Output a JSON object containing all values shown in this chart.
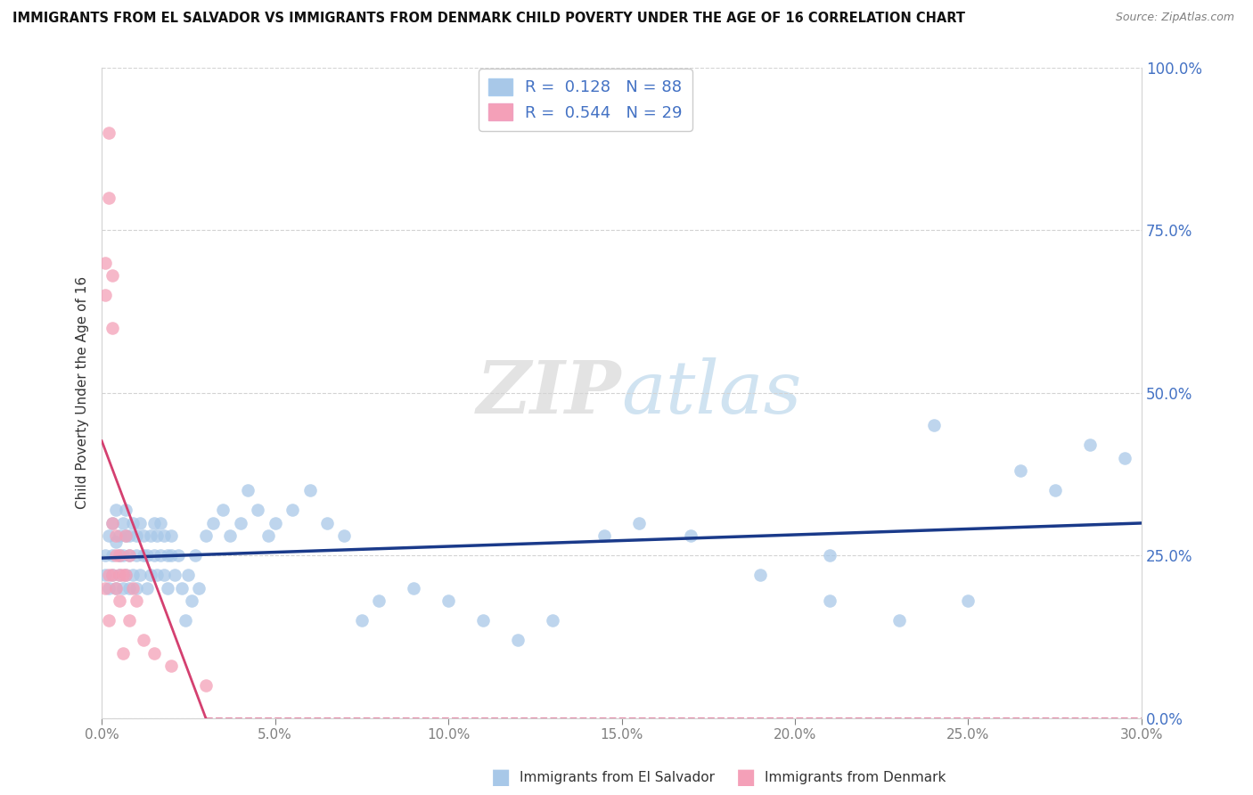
{
  "title": "IMMIGRANTS FROM EL SALVADOR VS IMMIGRANTS FROM DENMARK CHILD POVERTY UNDER THE AGE OF 16 CORRELATION CHART",
  "source": "Source: ZipAtlas.com",
  "ylabel": "Child Poverty Under the Age of 16",
  "watermark": "ZIPatlas",
  "legend_entry1_r": "0.128",
  "legend_entry1_n": "88",
  "legend_entry2_r": "0.544",
  "legend_entry2_n": "29",
  "legend_label1": "Immigrants from El Salvador",
  "legend_label2": "Immigrants from Denmark",
  "blue_color": "#a8c8e8",
  "pink_color": "#f4a0b8",
  "blue_line_color": "#1a3a8a",
  "pink_line_color": "#d44070",
  "xlim": [
    0.0,
    0.3
  ],
  "ylim": [
    0.0,
    1.0
  ],
  "blue_scatter_x": [
    0.001,
    0.001,
    0.002,
    0.002,
    0.003,
    0.003,
    0.003,
    0.004,
    0.004,
    0.004,
    0.005,
    0.005,
    0.005,
    0.006,
    0.006,
    0.006,
    0.007,
    0.007,
    0.007,
    0.008,
    0.008,
    0.008,
    0.009,
    0.009,
    0.01,
    0.01,
    0.01,
    0.011,
    0.011,
    0.012,
    0.012,
    0.013,
    0.013,
    0.014,
    0.014,
    0.015,
    0.015,
    0.016,
    0.016,
    0.017,
    0.017,
    0.018,
    0.018,
    0.019,
    0.019,
    0.02,
    0.02,
    0.021,
    0.022,
    0.023,
    0.024,
    0.025,
    0.026,
    0.027,
    0.028,
    0.03,
    0.032,
    0.035,
    0.037,
    0.04,
    0.042,
    0.045,
    0.048,
    0.05,
    0.055,
    0.06,
    0.065,
    0.07,
    0.075,
    0.08,
    0.09,
    0.1,
    0.11,
    0.12,
    0.13,
    0.145,
    0.155,
    0.17,
    0.19,
    0.21,
    0.23,
    0.25,
    0.265,
    0.275,
    0.285,
    0.295,
    0.21,
    0.24
  ],
  "blue_scatter_y": [
    0.22,
    0.25,
    0.2,
    0.28,
    0.22,
    0.25,
    0.3,
    0.2,
    0.27,
    0.32,
    0.22,
    0.25,
    0.28,
    0.2,
    0.25,
    0.3,
    0.22,
    0.28,
    0.32,
    0.2,
    0.25,
    0.28,
    0.22,
    0.3,
    0.2,
    0.25,
    0.28,
    0.22,
    0.3,
    0.25,
    0.28,
    0.2,
    0.25,
    0.22,
    0.28,
    0.25,
    0.3,
    0.22,
    0.28,
    0.25,
    0.3,
    0.22,
    0.28,
    0.25,
    0.2,
    0.25,
    0.28,
    0.22,
    0.25,
    0.2,
    0.15,
    0.22,
    0.18,
    0.25,
    0.2,
    0.28,
    0.3,
    0.32,
    0.28,
    0.3,
    0.35,
    0.32,
    0.28,
    0.3,
    0.32,
    0.35,
    0.3,
    0.28,
    0.15,
    0.18,
    0.2,
    0.18,
    0.15,
    0.12,
    0.15,
    0.28,
    0.3,
    0.28,
    0.22,
    0.18,
    0.15,
    0.18,
    0.38,
    0.35,
    0.42,
    0.4,
    0.25,
    0.45
  ],
  "pink_scatter_x": [
    0.001,
    0.001,
    0.001,
    0.002,
    0.002,
    0.002,
    0.002,
    0.003,
    0.003,
    0.003,
    0.003,
    0.004,
    0.004,
    0.004,
    0.005,
    0.005,
    0.005,
    0.006,
    0.006,
    0.007,
    0.007,
    0.008,
    0.008,
    0.009,
    0.01,
    0.012,
    0.015,
    0.02,
    0.03
  ],
  "pink_scatter_y": [
    0.2,
    0.7,
    0.65,
    0.8,
    0.9,
    0.22,
    0.15,
    0.3,
    0.22,
    0.68,
    0.6,
    0.25,
    0.2,
    0.28,
    0.22,
    0.18,
    0.25,
    0.22,
    0.1,
    0.28,
    0.22,
    0.25,
    0.15,
    0.2,
    0.18,
    0.12,
    0.1,
    0.08,
    0.05
  ]
}
